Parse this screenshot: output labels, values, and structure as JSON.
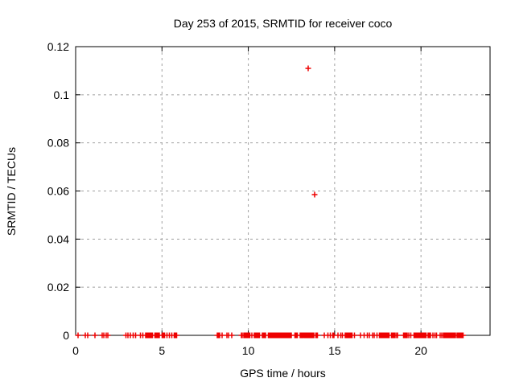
{
  "chart_data": {
    "type": "scatter",
    "title": "Day 253 of 2015, SRMTID for receiver coco",
    "xlabel": "GPS time / hours",
    "ylabel": "SRMTID / TECUs",
    "xlim": [
      0,
      24
    ],
    "ylim": [
      0,
      0.12
    ],
    "xtick_values": [
      0,
      5,
      10,
      15,
      20
    ],
    "xtick_labels": [
      "0",
      "5",
      "10",
      "15",
      "20"
    ],
    "ytick_values": [
      0,
      0.02,
      0.04,
      0.06,
      0.08,
      0.1,
      0.12
    ],
    "ytick_labels": [
      "0",
      "0.02",
      "0.04",
      "0.06",
      "0.08",
      "0.1",
      "0.12"
    ],
    "grid": true,
    "legend": false,
    "colors": {
      "background": "#ffffff",
      "axis": "#000000",
      "grid": "#a0a0a0",
      "marker": "#ee0000"
    },
    "marker": {
      "shape": "plus",
      "size": 7,
      "stroke_width": 1.5
    },
    "series": [
      {
        "name": "SRMTID",
        "color": "#ee0000",
        "marker": "plus",
        "baseline_y": 0,
        "baseline_x": [
          0.14,
          0.56,
          0.7,
          1.11,
          1.53,
          1.62,
          1.76,
          1.86,
          2.92,
          3.02,
          3.16,
          3.34,
          3.48,
          3.76,
          3.9,
          4.05,
          4.1,
          4.15,
          4.2,
          4.25,
          4.3,
          4.35,
          4.4,
          4.45,
          4.6,
          4.65,
          4.7,
          4.75,
          4.8,
          4.85,
          5.0,
          5.05,
          5.1,
          5.15,
          5.29,
          5.43,
          5.57,
          5.71,
          5.78,
          5.85,
          8.21,
          8.28,
          8.35,
          8.49,
          8.77,
          8.86,
          9.05,
          9.6,
          9.65,
          9.75,
          9.8,
          9.85,
          9.9,
          9.95,
          10.0,
          10.05,
          10.1,
          10.21,
          10.35,
          10.4,
          10.45,
          10.5,
          10.55,
          10.6,
          10.65,
          10.8,
          10.85,
          10.9,
          10.95,
          11.0,
          11.15,
          11.2,
          11.25,
          11.3,
          11.35,
          11.4,
          11.45,
          11.5,
          11.55,
          11.6,
          11.65,
          11.7,
          11.75,
          11.8,
          11.85,
          11.9,
          11.95,
          12.0,
          12.05,
          12.1,
          12.15,
          12.2,
          12.25,
          12.3,
          12.35,
          12.4,
          12.45,
          12.5,
          12.7,
          12.75,
          12.8,
          12.85,
          13.0,
          13.05,
          13.1,
          13.15,
          13.2,
          13.25,
          13.3,
          13.35,
          13.4,
          13.45,
          13.5,
          13.55,
          13.6,
          13.65,
          13.7,
          13.75,
          13.8,
          13.9,
          13.95,
          14.0,
          14.4,
          14.6,
          14.75,
          14.9,
          14.95,
          15.2,
          15.35,
          15.45,
          15.6,
          15.65,
          15.7,
          15.75,
          15.8,
          15.85,
          15.9,
          15.95,
          16.0,
          16.15,
          16.5,
          16.7,
          16.9,
          17.0,
          17.2,
          17.3,
          17.45,
          17.6,
          17.65,
          17.7,
          17.75,
          17.8,
          17.85,
          17.9,
          17.95,
          18.0,
          18.05,
          18.1,
          18.15,
          18.3,
          18.35,
          18.4,
          18.45,
          18.5,
          18.6,
          18.65,
          19.0,
          19.05,
          19.1,
          19.15,
          19.2,
          19.3,
          19.4,
          19.6,
          19.65,
          19.7,
          19.75,
          19.8,
          19.85,
          19.9,
          19.95,
          20.0,
          20.05,
          20.1,
          20.15,
          20.2,
          20.25,
          20.3,
          20.4,
          20.45,
          20.5,
          20.55,
          20.7,
          20.8,
          20.9,
          21.1,
          21.2,
          21.3,
          21.35,
          21.4,
          21.45,
          21.5,
          21.55,
          21.6,
          21.65,
          21.7,
          21.75,
          21.8,
          21.85,
          21.9,
          21.95,
          22.0,
          22.1,
          22.15,
          22.2,
          22.25,
          22.3,
          22.35,
          22.4,
          22.45
        ],
        "points": [
          [
            13.47,
            0.111
          ],
          [
            13.84,
            0.0585
          ]
        ]
      }
    ]
  }
}
